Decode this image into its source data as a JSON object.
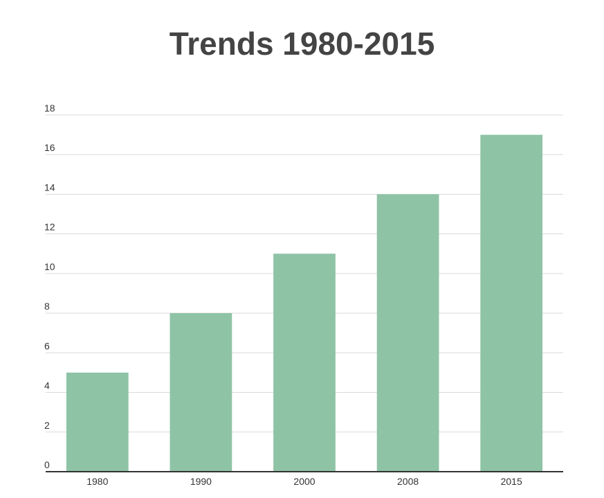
{
  "chart_data": {
    "type": "bar",
    "title": "Trends 1980-2015",
    "categories": [
      "1980",
      "1990",
      "2000",
      "2008",
      "2015"
    ],
    "values": [
      5,
      8,
      11,
      14,
      17
    ],
    "xlabel": "",
    "ylabel": "",
    "ylim": [
      0,
      18
    ],
    "yticks": [
      "0",
      "2",
      "4",
      "6",
      "8",
      "10",
      "12",
      "14",
      "16",
      "18"
    ],
    "grid": true,
    "legend": "none",
    "bar_color": "#8fc3a6",
    "grid_color": "#d9d9d9",
    "axis_color": "#333333"
  }
}
